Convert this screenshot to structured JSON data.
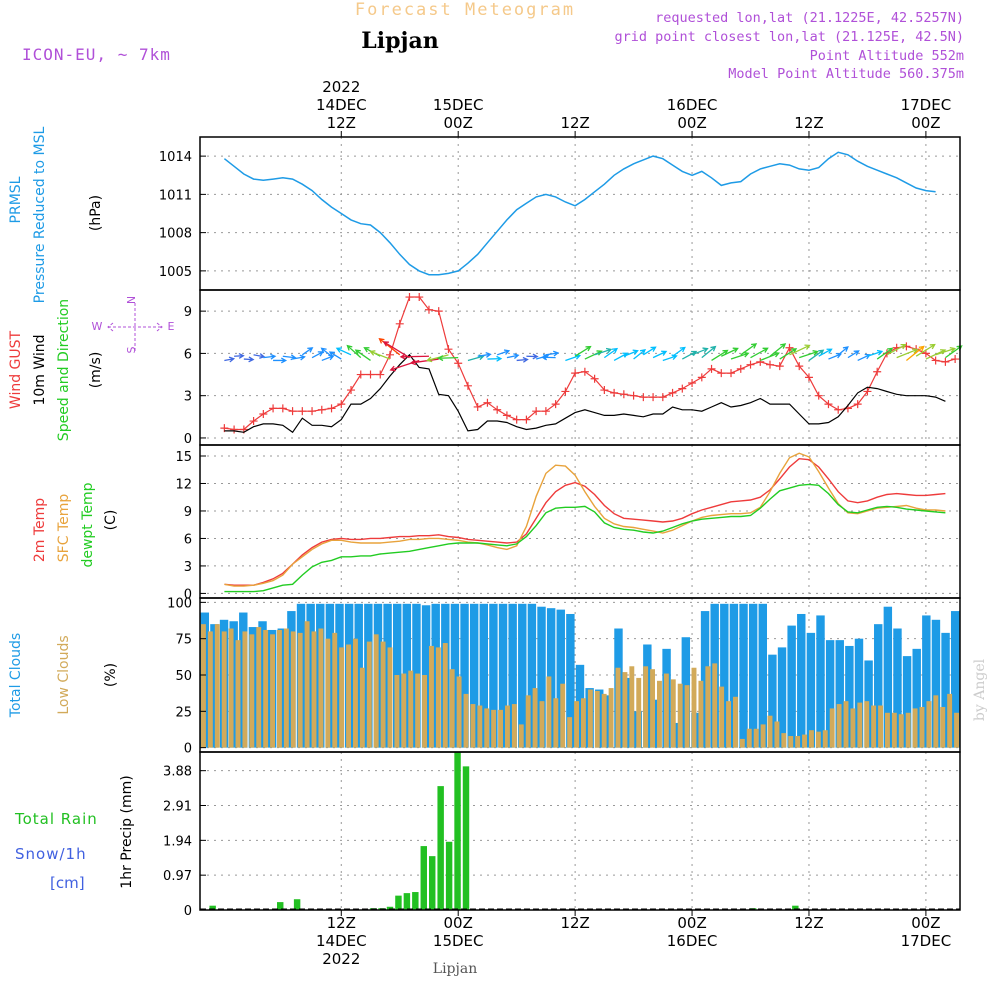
{
  "header": {
    "title": "Forecast Meteogram",
    "location": "Lipjan",
    "model": "ICON-EU, ~ 7km",
    "requested": "requested lon,lat (21.1225E, 42.5257N)",
    "grid_point": "grid point closest lon,lat (21.125E, 42.5N)",
    "point_altitude": "Point Altitude 552m",
    "model_altitude": "Model Point Altitude 560.375m"
  },
  "footer": {
    "location": "Lipjan",
    "watermark": "by Angel"
  },
  "colors": {
    "pressure": "#1e9be6",
    "gust": "#ee3b3b",
    "wind": "#000000",
    "temp": "#ee3b3b",
    "sfc_temp": "#e8a33c",
    "dewpt": "#22cc22",
    "total_clouds": "#1e9be6",
    "low_clouds": "#d2aa5a",
    "rain": "#22c022",
    "purple": "#b050d8",
    "title_orange": "#f5c98a"
  },
  "time_axis": {
    "top_ticks": [
      {
        "hour": 12,
        "line1": "2022",
        "line2": "14DEC",
        "line3": "12Z"
      },
      {
        "hour": 24,
        "line1": "",
        "line2": "15DEC",
        "line3": "00Z"
      },
      {
        "hour": 36,
        "line1": "",
        "line2": "",
        "line3": "12Z"
      },
      {
        "hour": 48,
        "line1": "",
        "line2": "16DEC",
        "line3": "00Z"
      },
      {
        "hour": 60,
        "line1": "",
        "line2": "",
        "line3": "12Z"
      },
      {
        "hour": 72,
        "line1": "",
        "line2": "17DEC",
        "line3": "00Z"
      }
    ],
    "bottom_ticks": [
      {
        "hour": 12,
        "line1": "12Z",
        "line2": "14DEC",
        "line3": "2022"
      },
      {
        "hour": 24,
        "line1": "00Z",
        "line2": "15DEC",
        "line3": ""
      },
      {
        "hour": 36,
        "line1": "12Z",
        "line2": "",
        "line3": ""
      },
      {
        "hour": 48,
        "line1": "00Z",
        "line2": "16DEC",
        "line3": ""
      },
      {
        "hour": 60,
        "line1": "12Z",
        "line2": "",
        "line3": ""
      },
      {
        "hour": 72,
        "line1": "00Z",
        "line2": "17DEC",
        "line3": ""
      }
    ]
  },
  "chart_data": [
    {
      "type": "line",
      "title": "PRMSL Pressure Reduced to MSL",
      "ylabel_lines": [
        "PRMSL",
        "Pressure Reduced to MSL"
      ],
      "unit": "(hPa)",
      "ylim": [
        1003.5,
        1015.5
      ],
      "yticks": [
        1005,
        1008,
        1011,
        1014
      ],
      "ytick_labels": [
        "1005",
        "1008",
        "1011",
        "1014"
      ],
      "x_start": 0,
      "x_step": 1,
      "series": [
        {
          "name": "Pressure Reduced to MSL",
          "values": [
            1013.8,
            1013.2,
            1012.6,
            1012.2,
            1012.1,
            1012.2,
            1012.3,
            1012.2,
            1011.8,
            1011.3,
            1010.6,
            1010.0,
            1009.5,
            1009.0,
            1008.7,
            1008.6,
            1008.0,
            1007.2,
            1006.3,
            1005.5,
            1005.0,
            1004.7,
            1004.7,
            1004.8,
            1005.0,
            1005.6,
            1006.3,
            1007.2,
            1008.1,
            1009.0,
            1009.8,
            1010.3,
            1010.8,
            1011.0,
            1010.8,
            1010.4,
            1010.1,
            1010.6,
            1011.2,
            1011.8,
            1012.5,
            1013.0,
            1013.4,
            1013.7,
            1014.0,
            1013.8,
            1013.3,
            1012.8,
            1012.5,
            1012.8,
            1012.3,
            1011.7,
            1011.9,
            1012.0,
            1012.6,
            1013.0,
            1013.2,
            1013.4,
            1013.3,
            1013.0,
            1012.9,
            1013.1,
            1013.8,
            1014.3,
            1014.1,
            1013.6,
            1013.2,
            1012.9,
            1012.6,
            1012.3,
            1011.9,
            1011.5,
            1011.3,
            1011.2
          ]
        }
      ]
    },
    {
      "type": "line",
      "title": "Wind GUST, 10m Wind Speed and Direction",
      "ylabel_lines": [
        "Wind GUST",
        "10m Wind",
        "Speed and Direction"
      ],
      "unit": "(m/s)",
      "compass": {
        "n": "N",
        "s": "S",
        "w": "W",
        "e": "E"
      },
      "ylim": [
        -0.5,
        10.5
      ],
      "yticks": [
        0,
        3,
        6,
        9
      ],
      "ytick_labels": [
        "0",
        "3",
        "6",
        "9"
      ],
      "x_start": 0,
      "x_step": 1,
      "series": [
        {
          "name": "Wind GUST",
          "values": [
            0.7,
            0.6,
            0.6,
            1.2,
            1.7,
            2.1,
            2.1,
            1.9,
            1.9,
            1.9,
            2.0,
            2.1,
            2.4,
            3.4,
            4.5,
            4.5,
            4.5,
            5.9,
            8.1,
            10.0,
            10.0,
            9.1,
            9.0,
            6.3,
            5.3,
            3.7,
            2.2,
            2.5,
            2.0,
            1.6,
            1.3,
            1.3,
            1.9,
            1.9,
            2.4,
            3.3,
            4.6,
            4.7,
            4.2,
            3.4,
            3.2,
            3.1,
            3.0,
            2.9,
            2.9,
            2.9,
            3.2,
            3.5,
            3.9,
            4.3,
            4.9,
            4.6,
            4.6,
            4.9,
            5.2,
            5.4,
            5.2,
            5.1,
            6.4,
            5.1,
            4.3,
            3.0,
            2.4,
            2.0,
            2.1,
            2.4,
            3.3,
            4.7,
            6.0,
            6.4,
            6.5,
            6.3,
            6.0,
            5.5,
            5.4,
            5.6
          ]
        },
        {
          "name": "10m Wind",
          "values": [
            0.5,
            0.5,
            0.4,
            0.8,
            1.0,
            1.0,
            0.9,
            0.4,
            1.4,
            0.9,
            0.9,
            0.8,
            1.3,
            2.4,
            2.4,
            2.8,
            3.5,
            4.4,
            5.2,
            5.9,
            5.0,
            4.9,
            3.1,
            3.0,
            1.9,
            0.5,
            0.6,
            1.2,
            1.2,
            1.1,
            0.8,
            0.6,
            0.7,
            0.9,
            1.0,
            1.4,
            1.8,
            2.0,
            1.8,
            1.6,
            1.6,
            1.7,
            1.6,
            1.5,
            1.7,
            1.7,
            2.2,
            2.0,
            2.0,
            1.9,
            2.2,
            2.5,
            2.2,
            2.3,
            2.5,
            2.8,
            2.4,
            2.4,
            2.4,
            1.7,
            1.0,
            1.0,
            1.1,
            1.5,
            2.3,
            3.2,
            3.6,
            3.5,
            3.3,
            3.1,
            3.0,
            3.0,
            3.0,
            2.9,
            2.6
          ]
        }
      ]
    },
    {
      "type": "line",
      "title": "2m Temp, SFC Temp, dewpt Temp",
      "ylabel_lines": [
        "2m Temp",
        "SFC Temp",
        "dewpt Temp"
      ],
      "unit": "(C)",
      "ylim": [
        -0.5,
        16.2
      ],
      "yticks": [
        0,
        3,
        6,
        9,
        12,
        15
      ],
      "ytick_labels": [
        "0",
        "3",
        "6",
        "9",
        "12",
        "15"
      ],
      "x_start": 0,
      "x_step": 1,
      "series": [
        {
          "name": "2m Temp",
          "values": [
            1.0,
            0.9,
            0.9,
            0.9,
            1.2,
            1.6,
            2.2,
            3.2,
            4.2,
            5.0,
            5.6,
            5.9,
            6.0,
            5.9,
            5.9,
            6.0,
            6.0,
            6.1,
            6.2,
            6.2,
            6.3,
            6.3,
            6.4,
            6.2,
            6.1,
            5.9,
            5.8,
            5.7,
            5.6,
            5.5,
            5.6,
            6.5,
            8.2,
            9.9,
            11.1,
            11.8,
            12.1,
            11.7,
            10.8,
            9.6,
            8.7,
            8.2,
            8.1,
            8.0,
            7.9,
            7.8,
            7.9,
            8.2,
            8.7,
            9.1,
            9.4,
            9.7,
            10.0,
            10.1,
            10.2,
            10.5,
            11.3,
            12.5,
            13.8,
            14.7,
            14.6,
            13.8,
            12.5,
            11.1,
            10.1,
            9.9,
            10.1,
            10.5,
            10.8,
            10.9,
            10.8,
            10.7,
            10.7,
            10.8,
            10.9
          ]
        },
        {
          "name": "SFC Temp",
          "values": [
            1.0,
            0.8,
            0.8,
            0.9,
            1.1,
            1.4,
            2.0,
            3.2,
            4.0,
            4.8,
            5.4,
            5.8,
            5.8,
            5.6,
            5.5,
            5.5,
            5.5,
            5.6,
            5.7,
            5.9,
            5.9,
            6.0,
            6.0,
            5.9,
            5.8,
            5.6,
            5.5,
            5.3,
            5.0,
            4.8,
            5.2,
            7.3,
            10.6,
            13.1,
            14.0,
            13.9,
            12.9,
            11.1,
            9.5,
            8.2,
            7.6,
            7.3,
            7.2,
            7.0,
            6.8,
            6.6,
            6.9,
            7.4,
            7.9,
            8.3,
            8.5,
            8.6,
            8.7,
            8.7,
            8.8,
            9.4,
            11.1,
            13.1,
            14.8,
            15.3,
            14.9,
            13.3,
            11.5,
            9.8,
            8.8,
            8.7,
            9.0,
            9.3,
            9.4,
            9.5,
            9.6,
            9.3,
            9.1,
            9.1,
            9.0
          ]
        },
        {
          "name": "dewpt Temp",
          "values": [
            0.2,
            0.2,
            0.2,
            0.2,
            0.3,
            0.6,
            0.9,
            1.0,
            2.0,
            2.9,
            3.4,
            3.6,
            4.0,
            4.0,
            4.1,
            4.1,
            4.3,
            4.4,
            4.5,
            4.6,
            4.8,
            5.0,
            5.2,
            5.4,
            5.5,
            5.5,
            5.5,
            5.4,
            5.3,
            5.2,
            5.4,
            6.2,
            7.4,
            8.8,
            9.3,
            9.4,
            9.4,
            9.5,
            8.9,
            7.7,
            7.2,
            7.0,
            6.9,
            6.7,
            6.6,
            6.8,
            7.2,
            7.6,
            7.9,
            8.1,
            8.2,
            8.3,
            8.4,
            8.4,
            8.5,
            9.3,
            10.3,
            11.2,
            11.5,
            11.8,
            11.9,
            11.8,
            10.9,
            9.7,
            8.9,
            8.8,
            9.1,
            9.4,
            9.5,
            9.4,
            9.2,
            9.1,
            9.0,
            8.9,
            8.8
          ]
        }
      ]
    },
    {
      "type": "bar",
      "title": "Total Clouds, Low Clouds",
      "ylabel_lines": [
        "Total Clouds",
        "Low Clouds"
      ],
      "unit": "(%)",
      "ylim": [
        -3,
        103
      ],
      "yticks": [
        0,
        25,
        50,
        75,
        100
      ],
      "ytick_labels": [
        "0",
        "25",
        "50",
        "75",
        "100"
      ],
      "x_start": 0,
      "x_step": 1,
      "series": [
        {
          "name": "Total Clouds",
          "values": [
            93,
            85,
            88,
            87,
            93,
            83,
            87,
            81,
            82,
            94,
            99,
            99,
            99,
            99,
            99,
            99,
            99,
            99,
            99,
            99,
            99,
            99,
            99,
            98,
            99,
            99,
            99,
            99,
            99,
            99,
            99,
            99,
            99,
            99,
            99,
            97,
            96,
            95,
            92,
            57,
            41,
            40,
            36,
            82,
            48,
            25,
            71,
            33,
            68,
            17,
            76,
            24,
            94,
            99,
            99,
            99,
            99,
            99,
            99,
            64,
            69,
            84,
            92,
            79,
            91,
            74,
            74,
            70,
            75,
            60,
            85,
            97,
            82,
            63,
            68,
            91,
            88,
            79,
            94
          ]
        },
        {
          "name": "Low Clouds",
          "values": [
            85,
            80,
            85,
            80,
            82,
            74,
            80,
            78,
            83,
            81,
            78,
            81,
            82,
            80,
            79,
            87,
            80,
            82,
            75,
            79,
            69,
            71,
            75,
            55,
            73,
            78,
            73,
            69,
            50,
            51,
            53,
            51,
            50,
            70,
            69,
            72,
            54,
            49,
            37,
            30,
            29,
            27,
            26,
            26,
            29,
            30,
            16,
            36,
            41,
            32,
            49,
            34,
            44,
            21,
            32,
            34,
            40,
            39,
            37,
            41,
            55,
            52,
            56,
            48,
            56,
            54,
            46,
            51,
            47,
            44,
            43,
            55,
            46,
            56,
            58,
            42,
            32,
            35,
            6,
            13,
            13,
            16,
            22,
            18,
            10,
            8,
            8,
            9,
            12,
            11,
            12,
            27,
            30,
            32,
            27,
            31,
            32,
            29,
            29,
            24,
            24,
            23,
            24,
            27,
            28,
            32,
            36,
            28,
            37,
            24
          ]
        }
      ]
    },
    {
      "type": "bar",
      "title": "1hr Precip",
      "ylabel_lines": [
        "Total Rain",
        "Snow/1h",
        "[cm]"
      ],
      "unit": "1hr Precip (mm)",
      "ylim": [
        0,
        4.4
      ],
      "yticks": [
        0,
        0.97,
        1.94,
        2.91,
        3.88
      ],
      "ytick_labels": [
        "0",
        "0.97",
        "1.94",
        "2.91",
        "3.88"
      ],
      "x_start": 0,
      "x_step": 1,
      "series": [
        {
          "name": "Total Rain",
          "values": [
            0,
            0.12,
            0,
            0,
            0,
            0,
            0,
            0,
            0,
            0.22,
            0,
            0.3,
            0,
            0,
            0,
            0,
            0,
            0,
            0,
            0,
            0.05,
            0.05,
            0.09,
            0.4,
            0.47,
            0.5,
            1.78,
            1.5,
            3.45,
            1.9,
            4.4,
            4.0,
            0,
            0,
            0,
            0,
            0,
            0,
            0,
            0,
            0,
            0,
            0,
            0,
            0,
            0,
            0,
            0,
            0,
            0,
            0,
            0,
            0,
            0,
            0,
            0,
            0,
            0,
            0,
            0,
            0,
            0,
            0,
            0,
            0,
            0.05,
            0,
            0,
            0,
            0,
            0.12,
            0,
            0,
            0,
            0,
            0,
            0,
            0,
            0,
            0,
            0,
            0,
            0,
            0,
            0,
            0,
            0,
            0,
            0,
            0
          ]
        },
        {
          "name": "Snow/1h",
          "values": []
        }
      ]
    }
  ]
}
